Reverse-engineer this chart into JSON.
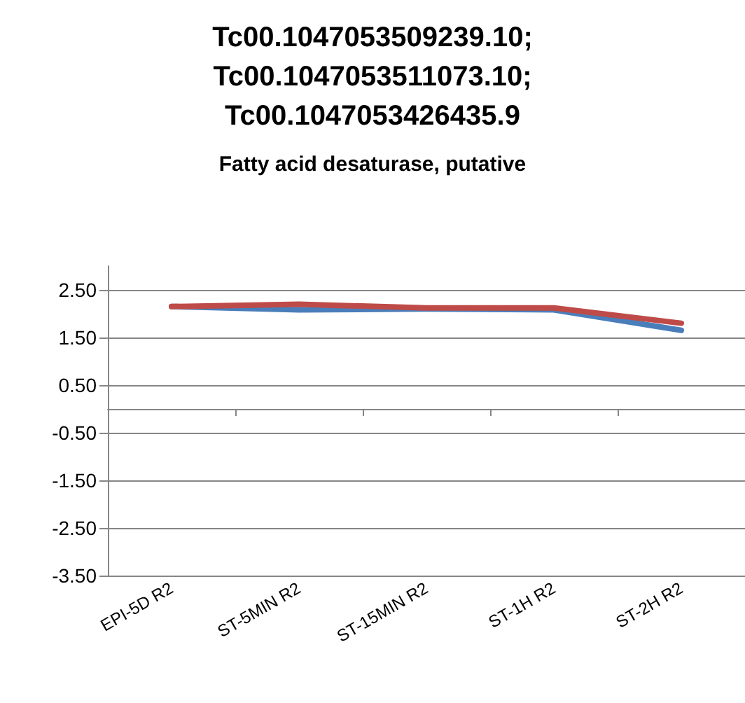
{
  "chart_data": {
    "type": "line",
    "title": "Tc00.1047053509239.10;\nTc00.1047053511073.10;\nTc00.1047053426435.9",
    "subtitle": "Fatty acid desaturase, putative",
    "categories": [
      "EPI-5D R2",
      "ST-5MIN R2",
      "ST-15MIN R2",
      "ST-1H R2",
      "ST-2H R2"
    ],
    "series": [
      {
        "color": "#4a7ebb",
        "values": [
          2.15,
          2.08,
          2.1,
          2.08,
          1.65
        ]
      },
      {
        "color": "#be4b48",
        "values": [
          2.15,
          2.2,
          2.12,
          2.12,
          1.8
        ]
      }
    ],
    "ylim": [
      -3.5,
      3
    ],
    "yticks": [
      {
        "value": -3.5,
        "label": "-3.50"
      },
      {
        "value": -2.5,
        "label": "-2.50"
      },
      {
        "value": -1.5,
        "label": "-1.50"
      },
      {
        "value": -0.5,
        "label": "-0.50"
      },
      {
        "value": 0.5,
        "label": "0.50"
      },
      {
        "value": 1.5,
        "label": "1.50"
      },
      {
        "value": 2.5,
        "label": "2.50"
      }
    ],
    "grid": "y",
    "marker": "none",
    "line_style": "solid"
  }
}
